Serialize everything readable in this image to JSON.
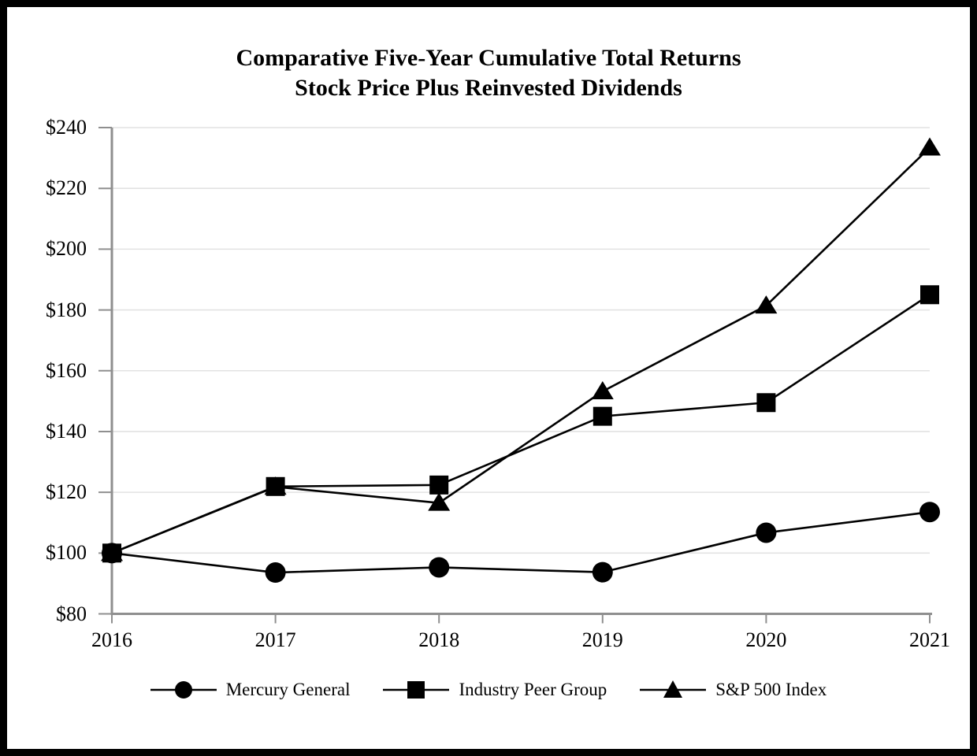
{
  "title": {
    "lines": [
      "Comparative Five-Year Cumulative Total Returns",
      "Stock Price Plus Reinvested Dividends"
    ]
  },
  "chart_data": {
    "type": "line",
    "title": "Comparative Five-Year Cumulative Total Returns",
    "subtitle": "Stock Price Plus Reinvested Dividends",
    "x": [
      2016,
      2017,
      2018,
      2019,
      2020,
      2021
    ],
    "xtick_labels": [
      "2016",
      "2017",
      "2018",
      "2019",
      "2020",
      "2021"
    ],
    "series": [
      {
        "name": "Mercury General",
        "marker": "circle",
        "values": [
          100.0,
          93.6,
          95.3,
          93.7,
          106.7,
          113.5
        ]
      },
      {
        "name": "Industry Peer Group",
        "marker": "square",
        "values": [
          100.0,
          121.9,
          122.4,
          145.0,
          149.5,
          185.0
        ]
      },
      {
        "name": "S&P 500 Index",
        "marker": "triangle",
        "values": [
          100.0,
          121.8,
          116.5,
          153.2,
          181.4,
          233.4
        ]
      }
    ],
    "xlabel": "",
    "ylabel": "",
    "ylim": [
      80,
      240
    ],
    "ytick_step": 20,
    "ytick_labels": [
      "$80",
      "$100",
      "$120",
      "$140",
      "$160",
      "$180",
      "$200",
      "$220",
      "$240"
    ],
    "grid": true,
    "legend_position": "bottom",
    "colors": {
      "series_line": "#000000",
      "marker_fill": "#000000",
      "axis": "#8f8f8f",
      "gridline": "#e2e2e2",
      "text": "#000000",
      "background": "#ffffff",
      "frame_border": "#000000"
    }
  }
}
